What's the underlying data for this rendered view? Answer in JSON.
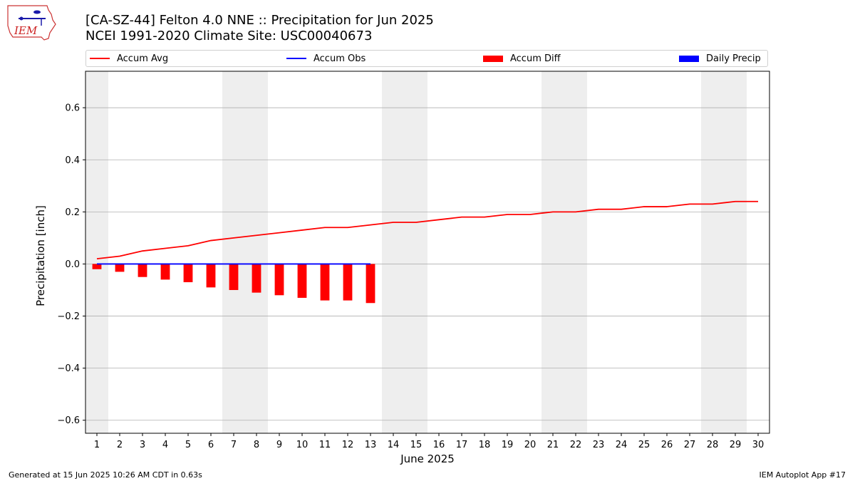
{
  "header": {
    "title_line1": "[CA-SZ-44] Felton 4.0 NNE :: Precipitation for Jun 2025",
    "title_line2": "NCEI 1991-2020 Climate Site: USC00040673",
    "logo_text": "IEM"
  },
  "legend": [
    {
      "label": "Accum Avg",
      "kind": "line",
      "color": "#ff0000"
    },
    {
      "label": "Accum Obs",
      "kind": "line",
      "color": "#0000ff"
    },
    {
      "label": "Accum Diff",
      "kind": "patch",
      "color": "#ff0000"
    },
    {
      "label": "Daily Precip",
      "kind": "patch",
      "color": "#0000ff"
    }
  ],
  "chart_data": {
    "type": "line",
    "xlabel": "June 2025",
    "ylabel": "Precipitation [inch]",
    "xlim": [
      0.5,
      30.5
    ],
    "ylim": [
      -0.65,
      0.74
    ],
    "x_ticks": [
      1,
      2,
      3,
      4,
      5,
      6,
      7,
      8,
      9,
      10,
      11,
      12,
      13,
      14,
      15,
      16,
      17,
      18,
      19,
      20,
      21,
      22,
      23,
      24,
      25,
      26,
      27,
      28,
      29,
      30
    ],
    "y_ticks": [
      -0.6,
      -0.4,
      -0.2,
      0.0,
      0.2,
      0.4,
      0.6
    ],
    "y_tick_labels": [
      "−0.6",
      "−0.4",
      "−0.2",
      "0.0",
      "0.2",
      "0.4",
      "0.6"
    ],
    "grid": "horizontal",
    "weekend_shading": [
      [
        0.5,
        1.5
      ],
      [
        6.5,
        8.5
      ],
      [
        13.5,
        15.5
      ],
      [
        20.5,
        22.5
      ],
      [
        27.5,
        29.5
      ]
    ],
    "weekend_color": "#eeeeee",
    "series": [
      {
        "name": "Accum Avg",
        "type": "line",
        "color": "#ff0000",
        "x": [
          1,
          2,
          3,
          4,
          5,
          6,
          7,
          8,
          9,
          10,
          11,
          12,
          13,
          14,
          15,
          16,
          17,
          18,
          19,
          20,
          21,
          22,
          23,
          24,
          25,
          26,
          27,
          28,
          29,
          30
        ],
        "values": [
          0.02,
          0.03,
          0.05,
          0.06,
          0.07,
          0.09,
          0.1,
          0.11,
          0.12,
          0.13,
          0.14,
          0.14,
          0.15,
          0.16,
          0.16,
          0.17,
          0.18,
          0.18,
          0.19,
          0.19,
          0.2,
          0.2,
          0.21,
          0.21,
          0.22,
          0.22,
          0.23,
          0.23,
          0.24,
          0.24
        ]
      },
      {
        "name": "Accum Obs",
        "type": "line",
        "color": "#0000ff",
        "x": [
          1,
          2,
          3,
          4,
          5,
          6,
          7,
          8,
          9,
          10,
          11,
          12,
          13
        ],
        "values": [
          0,
          0,
          0,
          0,
          0,
          0,
          0,
          0,
          0,
          0,
          0,
          0,
          0
        ]
      },
      {
        "name": "Accum Diff",
        "type": "bar",
        "color": "#ff0000",
        "x": [
          1,
          2,
          3,
          4,
          5,
          6,
          7,
          8,
          9,
          10,
          11,
          12,
          13
        ],
        "values": [
          -0.02,
          -0.03,
          -0.05,
          -0.06,
          -0.07,
          -0.09,
          -0.1,
          -0.11,
          -0.12,
          -0.13,
          -0.14,
          -0.14,
          -0.15
        ]
      },
      {
        "name": "Daily Precip",
        "type": "bar",
        "color": "#0000ff",
        "x": [
          1,
          2,
          3,
          4,
          5,
          6,
          7,
          8,
          9,
          10,
          11,
          12,
          13
        ],
        "values": [
          0,
          0,
          0,
          0,
          0,
          0,
          0,
          0,
          0,
          0,
          0,
          0,
          0
        ]
      }
    ]
  },
  "footer": {
    "left": "Generated at 15 Jun 2025 10:26 AM CDT in 0.63s",
    "right": "IEM Autoplot App #17"
  }
}
